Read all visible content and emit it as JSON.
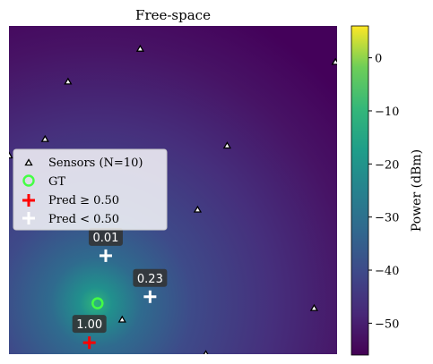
{
  "chart_data": {
    "type": "heatmap",
    "title": "Free-space",
    "xlim": [
      0,
      1
    ],
    "ylim": [
      0,
      1
    ],
    "source_peak": [
      0.27,
      0.155
    ],
    "colorbar": {
      "label": "Power (dBm)",
      "min": -56,
      "max": 6,
      "ticks": [
        0,
        -10,
        -20,
        -30,
        -40,
        -50
      ],
      "tick_labels": [
        "0",
        "−10",
        "−20",
        "−30",
        "−40",
        "−50"
      ]
    },
    "legend": {
      "position": "center-left",
      "entries": [
        {
          "key": "sensors",
          "label": "Sensors (N=10)"
        },
        {
          "key": "gt",
          "label": "GT"
        },
        {
          "key": "pred_high",
          "label": "Pred ≥ 0.50"
        },
        {
          "key": "pred_low",
          "label": "Pred < 0.50"
        }
      ]
    },
    "sensors": [
      {
        "x": 0.4,
        "y": 0.93
      },
      {
        "x": 0.18,
        "y": 0.83
      },
      {
        "x": 0.995,
        "y": 0.89
      },
      {
        "x": 0.11,
        "y": 0.655
      },
      {
        "x": 0.665,
        "y": 0.635
      },
      {
        "x": 0.0,
        "y": 0.605
      },
      {
        "x": 0.575,
        "y": 0.44
      },
      {
        "x": 0.93,
        "y": 0.14
      },
      {
        "x": 0.345,
        "y": 0.105
      },
      {
        "x": 0.6,
        "y": 0.0
      }
    ],
    "gt": {
      "x": 0.27,
      "y": 0.155
    },
    "predictions": [
      {
        "x": 0.245,
        "y": 0.035,
        "prob": 1.0,
        "label": "1.00",
        "class": "high"
      },
      {
        "x": 0.43,
        "y": 0.175,
        "prob": 0.23,
        "label": "0.23",
        "class": "low"
      },
      {
        "x": 0.295,
        "y": 0.3,
        "prob": 0.01,
        "label": "0.01",
        "class": "low"
      }
    ],
    "colors": {
      "sensor_edge": "#000000",
      "sensor_fill": "#ffffff",
      "gt": "#44ff44",
      "pred_high": "#ff0000",
      "pred_low": "#ffffff",
      "label_box": "#333333"
    }
  }
}
